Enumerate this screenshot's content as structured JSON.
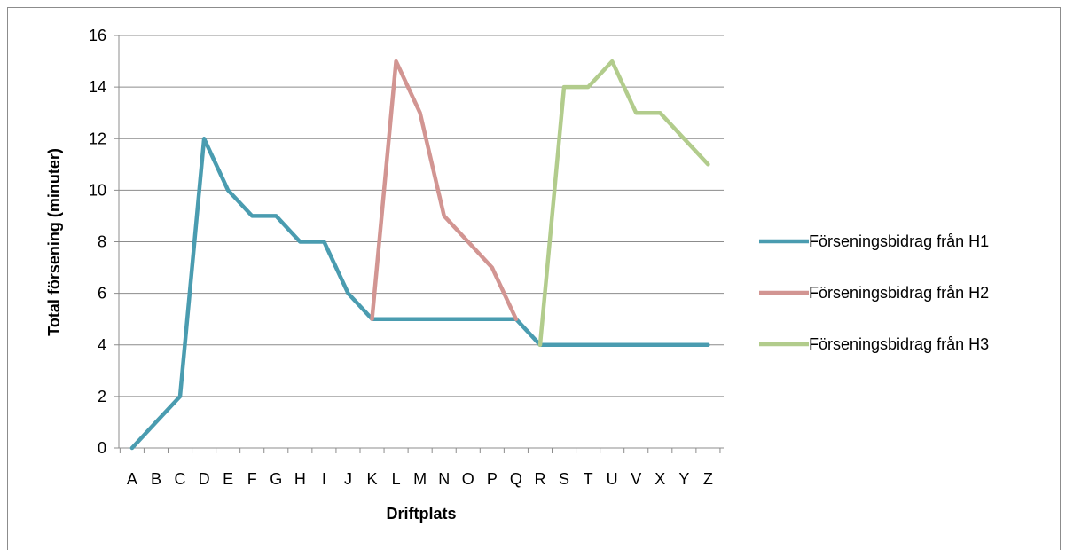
{
  "chart_data": {
    "type": "line",
    "title": "",
    "xlabel": "Driftplats",
    "ylabel": "Total försening (minuter)",
    "ylim": [
      0,
      16
    ],
    "yticks": [
      0,
      2,
      4,
      6,
      8,
      10,
      12,
      14,
      16
    ],
    "grid": true,
    "legend_position": "right",
    "categories": [
      "A",
      "B",
      "C",
      "D",
      "E",
      "F",
      "G",
      "H",
      "I",
      "J",
      "K",
      "L",
      "M",
      "N",
      "O",
      "P",
      "Q",
      "R",
      "S",
      "T",
      "U",
      "V",
      "X",
      "Y",
      "Z"
    ],
    "series": [
      {
        "name": "Förseningsbidrag från H1",
        "color": "#4a9cb0",
        "values": [
          0,
          1,
          2,
          12,
          10,
          9,
          9,
          8,
          8,
          6,
          5,
          5,
          5,
          5,
          5,
          5,
          5,
          4,
          4,
          4,
          4,
          4,
          4,
          4,
          4
        ]
      },
      {
        "name": "Förseningsbidrag från H2",
        "color": "#d29592",
        "values": [
          null,
          null,
          null,
          null,
          null,
          null,
          null,
          null,
          null,
          null,
          5,
          15,
          13,
          9,
          8,
          7,
          5,
          null,
          null,
          null,
          null,
          null,
          null,
          null,
          null
        ]
      },
      {
        "name": "Förseningsbidrag från H3",
        "color": "#b2cc8c",
        "values": [
          null,
          null,
          null,
          null,
          null,
          null,
          null,
          null,
          null,
          null,
          null,
          null,
          null,
          null,
          null,
          null,
          null,
          4,
          14,
          14,
          15,
          13,
          13,
          12,
          11
        ]
      }
    ]
  }
}
